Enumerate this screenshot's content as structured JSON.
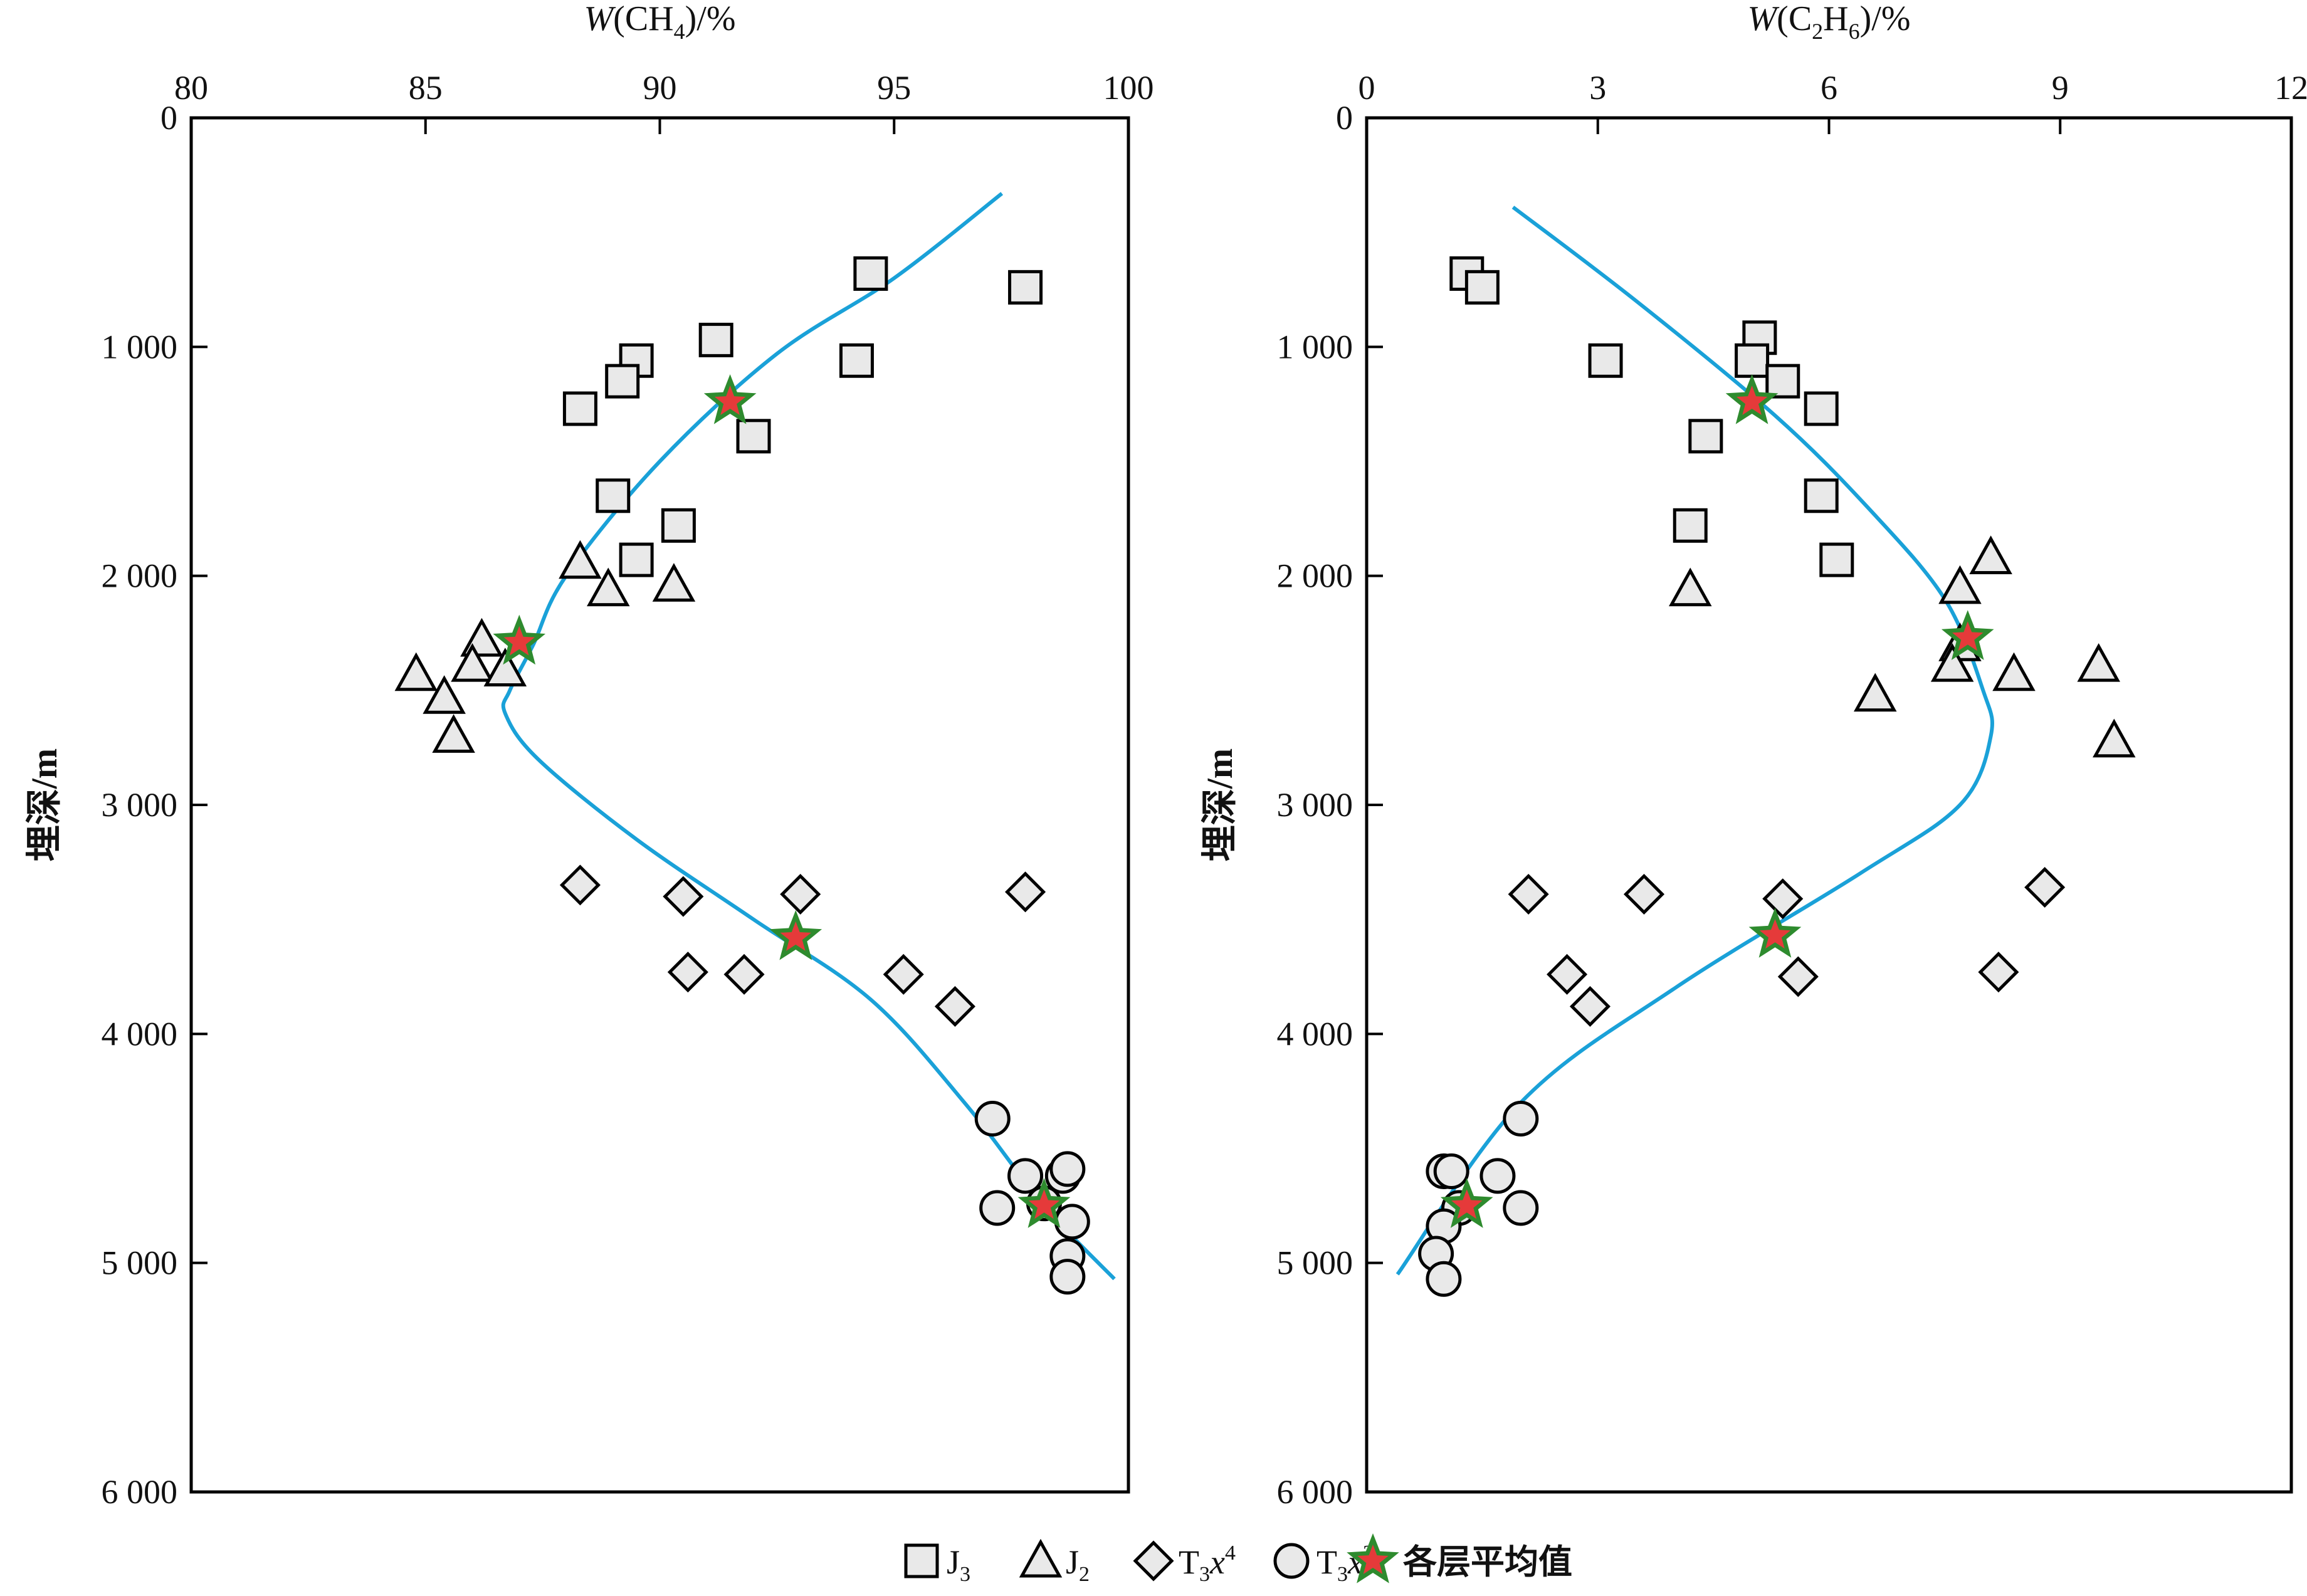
{
  "legend": [
    {
      "marker": "square",
      "label": "J",
      "sub": "3"
    },
    {
      "marker": "triangle",
      "label": "J",
      "sub": "2"
    },
    {
      "marker": "diamond",
      "label": "T",
      "sub": "3",
      "mid": "x",
      "sup": "4"
    },
    {
      "marker": "circle",
      "label": "T",
      "sub": "3",
      "mid": "x",
      "sup": "2"
    },
    {
      "marker": "star",
      "label": "各层平均值"
    }
  ],
  "colors": {
    "marker_fill": "#e9e9e9",
    "marker_stroke": "#000000",
    "trend": "#1aa1d8",
    "star_fill": "#e53a3a",
    "star_stroke": "#2e8b2e"
  },
  "chart_data": [
    {
      "type": "scatter",
      "xlabel": {
        "pre": "W",
        "mid": "(CH",
        "sub": "4",
        "post": ")/%"
      },
      "ylabel": "埋深/m",
      "xlim": [
        80,
        100
      ],
      "ylim": [
        0,
        6000
      ],
      "x_axis_position": "top",
      "y_inverted": true,
      "grid": false,
      "xticks": [
        80,
        85,
        90,
        95,
        100
      ],
      "yticks": [
        0,
        1000,
        2000,
        3000,
        4000,
        5000,
        6000
      ],
      "ytick_labels": [
        "0",
        "1 000",
        "2 000",
        "3 000",
        "4 000",
        "5 000",
        "6 000"
      ],
      "series": [
        {
          "name": "J3",
          "marker": "square",
          "points": [
            [
              94.5,
              680
            ],
            [
              97.8,
              740
            ],
            [
              91.2,
              970
            ],
            [
              89.5,
              1060
            ],
            [
              94.2,
              1060
            ],
            [
              89.2,
              1150
            ],
            [
              88.3,
              1270
            ],
            [
              92.0,
              1390
            ],
            [
              89.0,
              1650
            ],
            [
              90.4,
              1780
            ],
            [
              89.5,
              1930
            ]
          ]
        },
        {
          "name": "J2",
          "marker": "triangle",
          "points": [
            [
              88.3,
              1940
            ],
            [
              88.9,
              2060
            ],
            [
              90.3,
              2040
            ],
            [
              86.2,
              2280
            ],
            [
              84.8,
              2430
            ],
            [
              85.4,
              2530
            ],
            [
              85.6,
              2700
            ],
            [
              86.0,
              2390
            ],
            [
              86.7,
              2410
            ]
          ]
        },
        {
          "name": "T3x4",
          "marker": "diamond",
          "points": [
            [
              88.3,
              3350
            ],
            [
              90.5,
              3400
            ],
            [
              93.0,
              3390
            ],
            [
              97.8,
              3380
            ],
            [
              90.6,
              3730
            ],
            [
              91.8,
              3740
            ],
            [
              95.2,
              3740
            ],
            [
              96.3,
              3880
            ]
          ]
        },
        {
          "name": "T3x2",
          "marker": "circle",
          "points": [
            [
              97.1,
              4370
            ],
            [
              97.8,
              4620
            ],
            [
              98.6,
              4620
            ],
            [
              98.7,
              4590
            ],
            [
              97.2,
              4760
            ],
            [
              98.2,
              4740
            ],
            [
              98.8,
              4820
            ],
            [
              98.7,
              4970
            ],
            [
              98.7,
              5060
            ]
          ]
        }
      ],
      "averages": [
        [
          91.5,
          1240
        ],
        [
          87.0,
          2290
        ],
        [
          92.9,
          3580
        ],
        [
          98.2,
          4750
        ]
      ],
      "trend": [
        [
          97.3,
          330
        ],
        [
          95.0,
          700
        ],
        [
          92.5,
          1030
        ],
        [
          90.0,
          1500
        ],
        [
          88.0,
          2000
        ],
        [
          87.3,
          2300
        ],
        [
          86.8,
          2500
        ],
        [
          86.7,
          2600
        ],
        [
          87.4,
          2800
        ],
        [
          89.5,
          3150
        ],
        [
          92.0,
          3500
        ],
        [
          94.5,
          3850
        ],
        [
          96.5,
          4300
        ],
        [
          98.2,
          4750
        ],
        [
          99.7,
          5070
        ]
      ]
    },
    {
      "type": "scatter",
      "xlabel": {
        "pre": "W",
        "mid": "(C",
        "sub": "2",
        "mid2": "H",
        "sub2": "6",
        "post": ")/%"
      },
      "ylabel": "埋深/m",
      "xlim": [
        0,
        12
      ],
      "ylim": [
        0,
        6000
      ],
      "x_axis_position": "top",
      "y_inverted": true,
      "grid": false,
      "xticks": [
        0,
        3,
        6,
        9,
        12
      ],
      "yticks": [
        0,
        1000,
        2000,
        3000,
        4000,
        5000,
        6000
      ],
      "ytick_labels": [
        "0",
        "1 000",
        "2 000",
        "3 000",
        "4 000",
        "5 000",
        "6 000"
      ],
      "series": [
        {
          "name": "J3",
          "marker": "square",
          "points": [
            [
              1.3,
              680
            ],
            [
              1.5,
              740
            ],
            [
              3.1,
              1060
            ],
            [
              5.1,
              960
            ],
            [
              5.0,
              1060
            ],
            [
              5.4,
              1150
            ],
            [
              5.9,
              1270
            ],
            [
              4.4,
              1390
            ],
            [
              5.9,
              1650
            ],
            [
              4.2,
              1780
            ],
            [
              6.1,
              1930
            ]
          ]
        },
        {
          "name": "J2",
          "marker": "triangle",
          "points": [
            [
              8.1,
              1920
            ],
            [
              7.7,
              2050
            ],
            [
              4.2,
              2060
            ],
            [
              7.7,
              2300
            ],
            [
              7.6,
              2390
            ],
            [
              8.4,
              2430
            ],
            [
              9.5,
              2390
            ],
            [
              6.6,
              2520
            ],
            [
              9.7,
              2720
            ]
          ]
        },
        {
          "name": "T3x4",
          "marker": "diamond",
          "points": [
            [
              2.1,
              3390
            ],
            [
              3.6,
              3390
            ],
            [
              5.4,
              3410
            ],
            [
              8.8,
              3360
            ],
            [
              2.6,
              3740
            ],
            [
              5.6,
              3750
            ],
            [
              8.2,
              3730
            ],
            [
              2.9,
              3880
            ]
          ]
        },
        {
          "name": "T3x2",
          "marker": "circle",
          "points": [
            [
              2.0,
              4370
            ],
            [
              1.0,
              4600
            ],
            [
              1.1,
              4600
            ],
            [
              1.7,
              4620
            ],
            [
              1.2,
              4760
            ],
            [
              2.0,
              4760
            ],
            [
              1.0,
              4840
            ],
            [
              0.9,
              4960
            ],
            [
              1.0,
              5070
            ]
          ]
        }
      ],
      "averages": [
        [
          5.0,
          1240
        ],
        [
          7.8,
          2270
        ],
        [
          5.3,
          3570
        ],
        [
          1.3,
          4750
        ]
      ],
      "trend": [
        [
          1.9,
          390
        ],
        [
          3.5,
          800
        ],
        [
          5.3,
          1300
        ],
        [
          6.5,
          1700
        ],
        [
          7.5,
          2100
        ],
        [
          8.0,
          2500
        ],
        [
          8.1,
          2700
        ],
        [
          7.7,
          3000
        ],
        [
          6.4,
          3300
        ],
        [
          4.0,
          3800
        ],
        [
          2.0,
          4300
        ],
        [
          0.4,
          5050
        ]
      ]
    }
  ]
}
